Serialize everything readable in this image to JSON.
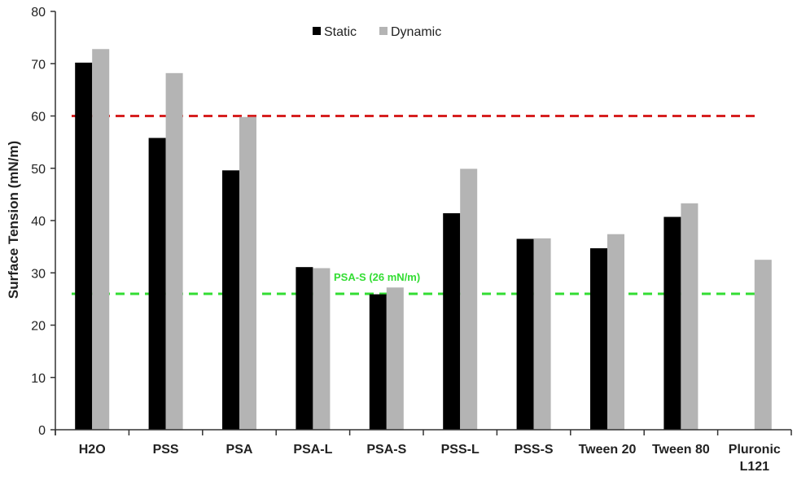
{
  "chart_data": {
    "type": "bar",
    "ylabel": "Surface Tension (mN/m)",
    "ylim": [
      0,
      80
    ],
    "yticks": [
      0,
      10,
      20,
      30,
      40,
      50,
      60,
      70,
      80
    ],
    "categories": [
      [
        "H2O"
      ],
      [
        "PSS"
      ],
      [
        "PSA"
      ],
      [
        "PSA-L"
      ],
      [
        "PSA-S"
      ],
      [
        "PSS-L"
      ],
      [
        "PSS-S"
      ],
      [
        "Tween 20"
      ],
      [
        "Tween 80"
      ],
      [
        "Pluronic",
        "L121"
      ]
    ],
    "series": [
      {
        "name": "Static",
        "color": "#000000",
        "values": [
          70.2,
          55.8,
          49.6,
          31.1,
          25.9,
          41.4,
          36.5,
          34.7,
          40.7,
          null
        ]
      },
      {
        "name": "Dynamic",
        "color": "#b4b4b4",
        "values": [
          72.8,
          68.2,
          59.8,
          30.9,
          27.2,
          49.9,
          36.6,
          37.4,
          43.3,
          32.5
        ]
      }
    ],
    "legend_position": "top-center",
    "grid": false,
    "reference_lines": [
      {
        "value": 60,
        "color": "#d62020",
        "style": "dashed",
        "label": ""
      },
      {
        "value": 26,
        "color": "#33dd33",
        "style": "dashed",
        "label": "PSA-S (26 mN/m)"
      }
    ]
  }
}
